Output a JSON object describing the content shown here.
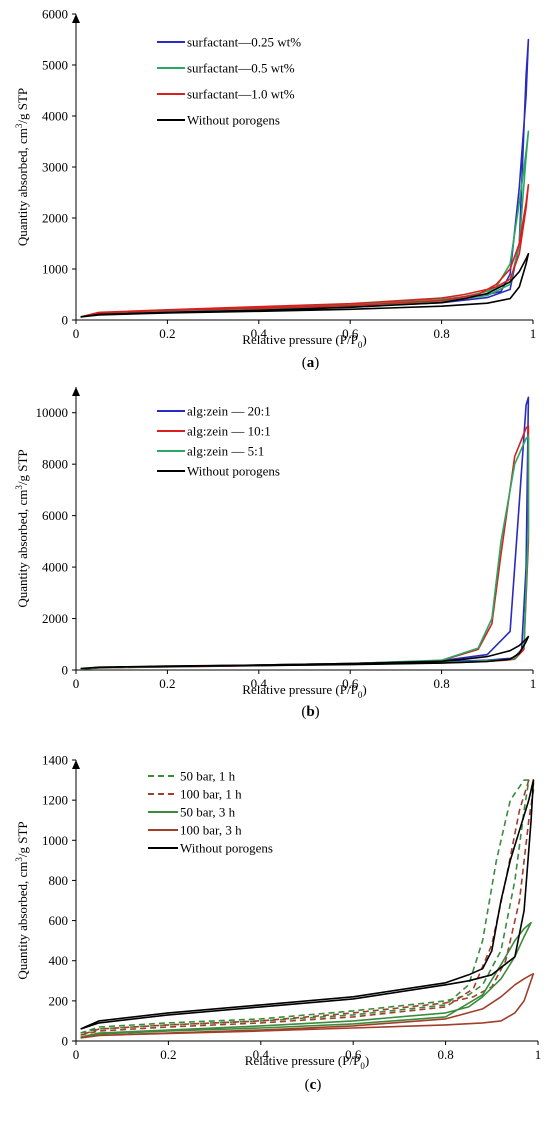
{
  "chart_data": [
    {
      "type": "line",
      "panel": "a",
      "caption": "a",
      "xlabel": "Relative pressure (P/P",
      "xlabel_sub": "0",
      "xlabel_end": ")",
      "ylabel_pre": "Quantity absorbed, cm",
      "ylabel_sup": "3",
      "ylabel_post": "/g STP",
      "xlim": [
        0,
        1
      ],
      "ylim": [
        0,
        6000
      ],
      "xticks": [
        0,
        0.2,
        0.4,
        0.6,
        0.8,
        1
      ],
      "xtick_labels": [
        "0",
        "0.2",
        "0.4",
        "0.6",
        "0.8",
        "1"
      ],
      "yticks": [
        0,
        1000,
        2000,
        3000,
        4000,
        5000,
        6000
      ],
      "ytick_labels": [
        "0",
        "1000",
        "2000",
        "3000",
        "4000",
        "5000",
        "6000"
      ],
      "legend_position": "top-center",
      "series": [
        {
          "name": "surfactant—0.25 wt%",
          "color": "#2a2ac0",
          "dash": "solid",
          "x": [
            0.01,
            0.05,
            0.2,
            0.4,
            0.6,
            0.8,
            0.9,
            0.95,
            0.97,
            0.985,
            0.99,
            0.99,
            0.985,
            0.97,
            0.95,
            0.93,
            0.9,
            0.85,
            0.8,
            0.6,
            0.4,
            0.2,
            0.05,
            0.01
          ],
          "y": [
            60,
            120,
            170,
            210,
            260,
            340,
            440,
            600,
            1500,
            4800,
            5500,
            5500,
            4400,
            2600,
            900,
            560,
            500,
            420,
            370,
            280,
            220,
            180,
            130,
            60
          ]
        },
        {
          "name": "surfactant—0.5 wt%",
          "color": "#2aa863",
          "dash": "solid",
          "x": [
            0.01,
            0.05,
            0.2,
            0.4,
            0.6,
            0.8,
            0.9,
            0.95,
            0.97,
            0.985,
            0.99,
            0.99,
            0.985,
            0.97,
            0.95,
            0.92,
            0.9,
            0.85,
            0.8,
            0.6,
            0.4,
            0.2,
            0.05,
            0.01
          ],
          "y": [
            60,
            130,
            180,
            220,
            270,
            360,
            480,
            700,
            1500,
            3200,
            3700,
            3700,
            3300,
            2300,
            1100,
            650,
            560,
            460,
            400,
            300,
            240,
            190,
            140,
            60
          ]
        },
        {
          "name": "surfactant—1.0 wt%",
          "color": "#d82020",
          "dash": "solid",
          "x": [
            0.01,
            0.05,
            0.2,
            0.4,
            0.6,
            0.8,
            0.88,
            0.92,
            0.95,
            0.97,
            0.985,
            0.99,
            0.99,
            0.985,
            0.97,
            0.95,
            0.92,
            0.9,
            0.85,
            0.8,
            0.6,
            0.4,
            0.2,
            0.05,
            0.01
          ],
          "y": [
            60,
            140,
            190,
            230,
            280,
            380,
            500,
            700,
            1000,
            1500,
            2300,
            2650,
            2650,
            2200,
            1300,
            800,
            650,
            600,
            500,
            430,
            320,
            260,
            200,
            150,
            60
          ]
        },
        {
          "name": "Without porogens",
          "color": "#000000",
          "dash": "solid",
          "x": [
            0.01,
            0.05,
            0.2,
            0.4,
            0.6,
            0.8,
            0.9,
            0.95,
            0.97,
            0.985,
            0.99,
            0.99,
            0.985,
            0.97,
            0.95,
            0.9,
            0.85,
            0.8,
            0.6,
            0.4,
            0.2,
            0.05,
            0.01
          ],
          "y": [
            60,
            100,
            140,
            170,
            210,
            270,
            330,
            420,
            650,
            1100,
            1300,
            1300,
            1200,
            950,
            750,
            520,
            420,
            340,
            250,
            190,
            150,
            110,
            60
          ]
        }
      ]
    },
    {
      "type": "line",
      "panel": "b",
      "caption": "b",
      "xlabel": "Relative pressure (P/P",
      "xlabel_sub": "0",
      "xlabel_end": ")",
      "ylabel_pre": "Quantity absorbed, cm",
      "ylabel_sup": "3",
      "ylabel_post": "/g STP",
      "xlim": [
        0,
        1
      ],
      "ylim": [
        0,
        11000
      ],
      "xticks": [
        0,
        0.2,
        0.4,
        0.6,
        0.8,
        1
      ],
      "xtick_labels": [
        "0",
        "0.2",
        "0.4",
        "0.6",
        "0.8",
        "1"
      ],
      "yticks": [
        0,
        2000,
        4000,
        6000,
        8000,
        10000
      ],
      "ytick_labels": [
        "0",
        "2000",
        "4000",
        "6000",
        "8000",
        "10000"
      ],
      "legend_position": "top-center",
      "series": [
        {
          "name": "alg:zein — 20:1",
          "color": "#2a2ac0",
          "dash": "solid",
          "x": [
            0.01,
            0.05,
            0.2,
            0.4,
            0.6,
            0.8,
            0.9,
            0.95,
            0.97,
            0.985,
            0.99,
            0.99,
            0.985,
            0.975,
            0.96,
            0.95,
            0.9,
            0.8,
            0.6,
            0.4,
            0.2,
            0.05,
            0.01
          ],
          "y": [
            40,
            90,
            140,
            190,
            250,
            360,
            600,
            1500,
            6500,
            10300,
            10600,
            10600,
            4000,
            800,
            500,
            450,
            380,
            320,
            240,
            180,
            130,
            90,
            40
          ]
        },
        {
          "name": "alg:zein — 10:1",
          "color": "#d82020",
          "dash": "solid",
          "x": [
            0.01,
            0.05,
            0.2,
            0.4,
            0.6,
            0.8,
            0.88,
            0.91,
            0.93,
            0.96,
            0.985,
            0.99,
            0.99,
            0.99,
            0.98,
            0.96,
            0.94,
            0.9,
            0.85,
            0.8,
            0.6,
            0.4,
            0.2,
            0.05,
            0.01
          ],
          "y": [
            40,
            90,
            140,
            190,
            250,
            370,
            800,
            1800,
            4500,
            8300,
            9400,
            9500,
            9500,
            5000,
            800,
            420,
            380,
            340,
            300,
            280,
            220,
            170,
            120,
            80,
            40
          ]
        },
        {
          "name": "alg:zein — 5:1",
          "color": "#2aa863",
          "dash": "solid",
          "x": [
            0.01,
            0.05,
            0.2,
            0.4,
            0.6,
            0.8,
            0.88,
            0.91,
            0.93,
            0.96,
            0.985,
            0.99,
            0.99,
            0.99,
            0.98,
            0.96,
            0.94,
            0.9,
            0.85,
            0.8,
            0.6,
            0.4,
            0.2,
            0.05,
            0.01
          ],
          "y": [
            40,
            90,
            140,
            190,
            250,
            380,
            850,
            2000,
            5000,
            8000,
            9000,
            9100,
            9100,
            5500,
            900,
            450,
            400,
            360,
            320,
            300,
            230,
            180,
            130,
            90,
            40
          ]
        },
        {
          "name": "Without porogens",
          "color": "#000000",
          "dash": "solid",
          "x": [
            0.01,
            0.05,
            0.2,
            0.4,
            0.6,
            0.8,
            0.9,
            0.95,
            0.97,
            0.985,
            0.99,
            0.99,
            0.985,
            0.97,
            0.95,
            0.9,
            0.85,
            0.8,
            0.6,
            0.4,
            0.2,
            0.05,
            0.01
          ],
          "y": [
            60,
            100,
            140,
            170,
            210,
            270,
            330,
            420,
            650,
            1100,
            1300,
            1300,
            1200,
            950,
            750,
            520,
            420,
            340,
            250,
            190,
            150,
            110,
            60
          ]
        }
      ]
    },
    {
      "type": "line",
      "panel": "c",
      "caption": "c",
      "xlabel": "Relative pressure (P/P",
      "xlabel_sub": "0",
      "xlabel_end": ")",
      "ylabel_pre": "Quantity absorbed, cm",
      "ylabel_sup": "3",
      "ylabel_post": "/g STP",
      "xlim": [
        0,
        1
      ],
      "ylim": [
        0,
        1400
      ],
      "xticks": [
        0,
        0.2,
        0.4,
        0.6,
        0.8,
        1
      ],
      "xtick_labels": [
        "0",
        "0.2",
        "0.4",
        "0.6",
        "0.8",
        "1"
      ],
      "yticks": [
        0,
        200,
        400,
        600,
        800,
        1000,
        1200,
        1400
      ],
      "ytick_labels": [
        "0",
        "200",
        "400",
        "600",
        "800",
        "1000",
        "1200",
        "1400"
      ],
      "legend_position": "top-left",
      "series": [
        {
          "name": "50 bar, 1 h",
          "color": "#3d8a3d",
          "dash": "dashed",
          "x": [
            0.01,
            0.05,
            0.2,
            0.4,
            0.6,
            0.8,
            0.85,
            0.88,
            0.91,
            0.94,
            0.97,
            0.98,
            0.98,
            0.97,
            0.95,
            0.92,
            0.88,
            0.85,
            0.8,
            0.6,
            0.4,
            0.2,
            0.05,
            0.01
          ],
          "y": [
            40,
            60,
            80,
            100,
            130,
            180,
            280,
            500,
            900,
            1200,
            1300,
            1300,
            1300,
            1150,
            800,
            450,
            280,
            230,
            200,
            150,
            110,
            90,
            70,
            40
          ]
        },
        {
          "name": "100 bar, 1 h",
          "color": "#a0402a",
          "dash": "dashed",
          "x": [
            0.01,
            0.05,
            0.2,
            0.4,
            0.6,
            0.8,
            0.86,
            0.9,
            0.93,
            0.96,
            0.98,
            0.99,
            0.99,
            0.98,
            0.96,
            0.93,
            0.9,
            0.86,
            0.8,
            0.6,
            0.4,
            0.2,
            0.05,
            0.01
          ],
          "y": [
            30,
            50,
            70,
            90,
            120,
            170,
            260,
            480,
            800,
            1150,
            1300,
            1300,
            1250,
            1100,
            700,
            400,
            270,
            220,
            190,
            140,
            100,
            80,
            60,
            30
          ]
        },
        {
          "name": "50 bar, 3 h",
          "color": "#3d8a3d",
          "dash": "solid",
          "x": [
            0.01,
            0.05,
            0.2,
            0.4,
            0.6,
            0.8,
            0.88,
            0.92,
            0.95,
            0.97,
            0.985,
            0.985,
            0.97,
            0.95,
            0.92,
            0.88,
            0.85,
            0.8,
            0.6,
            0.4,
            0.2,
            0.05,
            0.01
          ],
          "y": [
            20,
            35,
            50,
            65,
            85,
            120,
            230,
            380,
            500,
            560,
            590,
            590,
            520,
            420,
            310,
            220,
            170,
            140,
            100,
            75,
            55,
            40,
            20
          ]
        },
        {
          "name": "100 bar, 3 h",
          "color": "#a0402a",
          "dash": "solid",
          "x": [
            0.01,
            0.05,
            0.2,
            0.4,
            0.6,
            0.8,
            0.88,
            0.92,
            0.95,
            0.97,
            0.985,
            0.99,
            0.99,
            0.97,
            0.95,
            0.92,
            0.88,
            0.8,
            0.6,
            0.4,
            0.2,
            0.05,
            0.01
          ],
          "y": [
            15,
            28,
            40,
            55,
            75,
            110,
            160,
            220,
            280,
            310,
            330,
            335,
            335,
            200,
            140,
            100,
            90,
            80,
            65,
            50,
            38,
            28,
            15
          ]
        },
        {
          "name": "Without porogens",
          "color": "#000000",
          "dash": "solid",
          "x": [
            0.01,
            0.05,
            0.2,
            0.4,
            0.6,
            0.8,
            0.85,
            0.88,
            0.9,
            0.92,
            0.94,
            0.96,
            0.98,
            0.99,
            0.99,
            0.985,
            0.97,
            0.95,
            0.9,
            0.85,
            0.8,
            0.6,
            0.4,
            0.2,
            0.05,
            0.01
          ],
          "y": [
            60,
            100,
            140,
            180,
            220,
            290,
            330,
            360,
            450,
            700,
            900,
            1050,
            1200,
            1300,
            1300,
            1100,
            650,
            420,
            330,
            300,
            280,
            210,
            170,
            130,
            90,
            60
          ]
        }
      ]
    }
  ]
}
